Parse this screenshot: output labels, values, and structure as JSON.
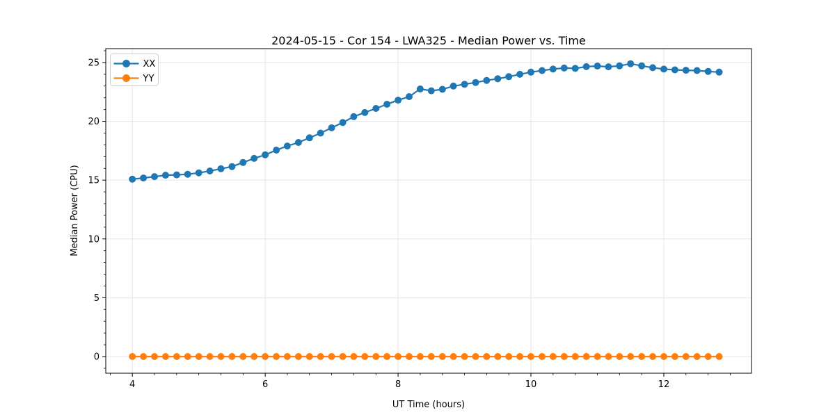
{
  "chart_data": {
    "type": "line",
    "title": "2024-05-15 - Cor 154 - LWA325 - Median Power vs. Time",
    "xlabel": "UT Time (hours)",
    "ylabel": "Median Power (CPU)",
    "x": [
      4.0,
      4.167,
      4.333,
      4.5,
      4.667,
      4.833,
      5.0,
      5.167,
      5.333,
      5.5,
      5.667,
      5.833,
      6.0,
      6.167,
      6.333,
      6.5,
      6.667,
      6.833,
      7.0,
      7.167,
      7.333,
      7.5,
      7.667,
      7.833,
      8.0,
      8.167,
      8.333,
      8.5,
      8.667,
      8.833,
      9.0,
      9.167,
      9.333,
      9.5,
      9.667,
      9.833,
      10.0,
      10.167,
      10.333,
      10.5,
      10.667,
      10.833,
      11.0,
      11.167,
      11.333,
      11.5,
      11.667,
      11.833,
      12.0,
      12.167,
      12.333,
      12.5,
      12.667,
      12.833
    ],
    "series": [
      {
        "name": "XX",
        "color": "#1f77b4",
        "values": [
          15.08,
          15.18,
          15.3,
          15.42,
          15.45,
          15.5,
          15.62,
          15.78,
          15.97,
          16.15,
          16.5,
          16.85,
          17.15,
          17.55,
          17.9,
          18.2,
          18.6,
          19.0,
          19.45,
          19.9,
          20.4,
          20.75,
          21.1,
          21.45,
          21.8,
          22.1,
          22.75,
          22.6,
          22.72,
          23.0,
          23.15,
          23.3,
          23.48,
          23.62,
          23.8,
          24.0,
          24.18,
          24.32,
          24.44,
          24.53,
          24.5,
          24.65,
          24.7,
          24.64,
          24.72,
          24.9,
          24.72,
          24.56,
          24.44,
          24.38,
          24.34,
          24.32,
          24.24,
          24.18
        ]
      },
      {
        "name": "YY",
        "color": "#ff7f0e",
        "values": [
          0,
          0,
          0,
          0,
          0,
          0,
          0,
          0,
          0,
          0,
          0,
          0,
          0,
          0,
          0,
          0,
          0,
          0,
          0,
          0,
          0,
          0,
          0,
          0,
          0,
          0,
          0,
          0,
          0,
          0,
          0,
          0,
          0,
          0,
          0,
          0,
          0,
          0,
          0,
          0,
          0,
          0,
          0,
          0,
          0,
          0,
          0,
          0,
          0,
          0,
          0,
          0,
          0,
          0
        ]
      }
    ],
    "xlim": [
      3.6,
      13.32
    ],
    "ylim": [
      -1.42,
      26.18
    ],
    "xticks": [
      4,
      6,
      8,
      10,
      12
    ],
    "yticks": [
      0,
      5,
      10,
      15,
      20,
      25
    ],
    "xtick_labels": [
      "4",
      "6",
      "8",
      "10",
      "12"
    ],
    "ytick_labels": [
      "0",
      "5",
      "10",
      "15",
      "20",
      "25"
    ],
    "x_minor_step": 0.33333,
    "y_minor_step": 1,
    "grid": true,
    "legend_position": "upper left",
    "colors": {
      "grid": "#e5e5e5",
      "spine": "#000000",
      "text": "#000000",
      "legend_border": "#cccccc",
      "background": "#ffffff"
    }
  }
}
